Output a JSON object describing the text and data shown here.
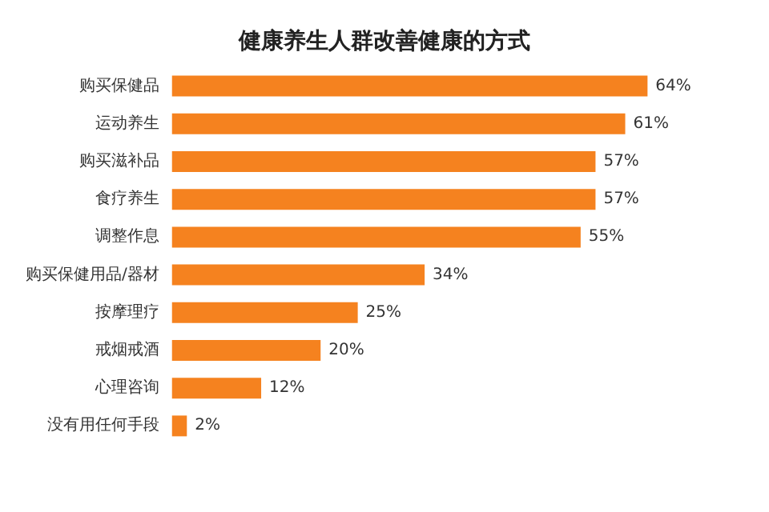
{
  "chart_data": {
    "type": "bar",
    "orientation": "horizontal",
    "title": "健康养生人群改善健康的方式",
    "categories": [
      "购买保健品",
      "运动养生",
      "购买滋补品",
      "食疗养生",
      "调整作息",
      "购买保健用品/器材",
      "按摩理疗",
      "戒烟戒酒",
      "心理咨询",
      "没有用任何手段"
    ],
    "values": [
      64,
      61,
      57,
      57,
      55,
      34,
      25,
      20,
      12,
      2
    ],
    "value_labels": [
      "64%",
      "61%",
      "57%",
      "57%",
      "55%",
      "34%",
      "25%",
      "20%",
      "12%",
      "2%"
    ],
    "color": "#f5821f"
  }
}
